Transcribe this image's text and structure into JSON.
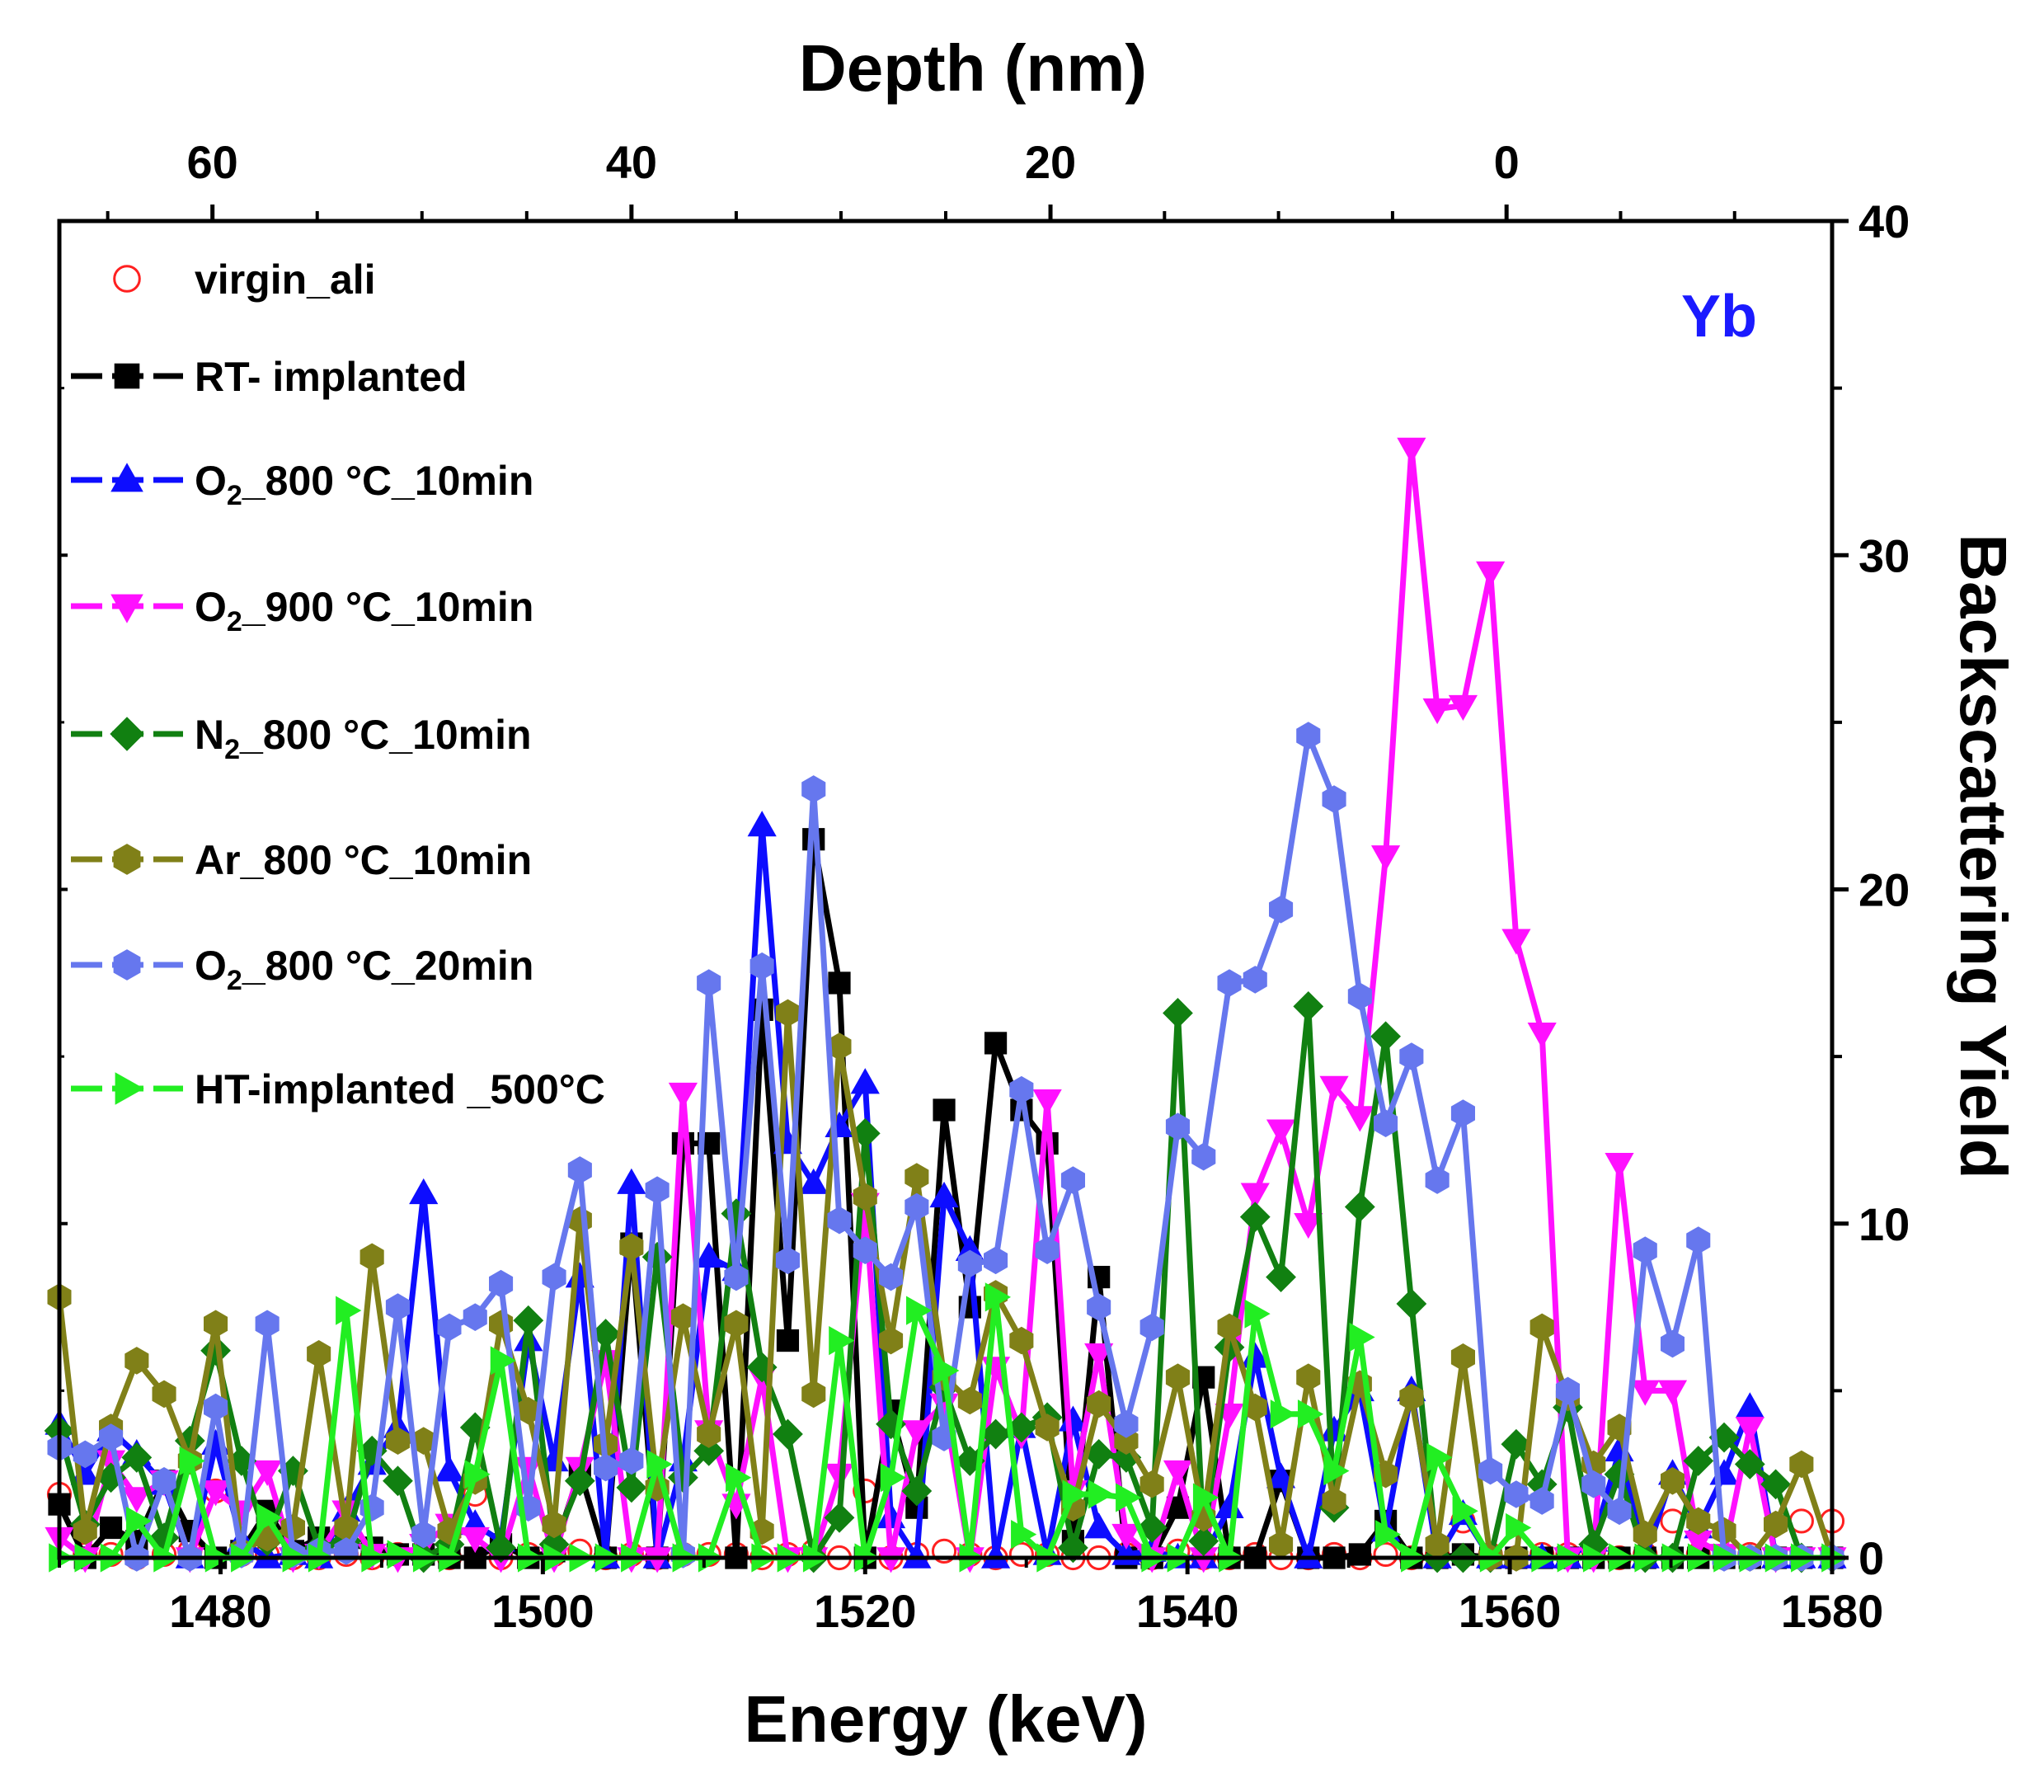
{
  "chart_data": {
    "type": "line",
    "title": "",
    "xlabel": "Energy (keV)",
    "x2label": "Depth (nm)",
    "ylabel": "Backscattering Yield",
    "xlim": [
      1470,
      1580
    ],
    "ylim": [
      0,
      40
    ],
    "x_ticks": [
      "1480",
      "1500",
      "1520",
      "1540",
      "1560",
      "1580"
    ],
    "y_ticks": [
      "0",
      "10",
      "20",
      "30",
      "40"
    ],
    "depth_ticks": [
      {
        "depth": 60,
        "label": "60",
        "energy": 1479.5
      },
      {
        "depth": 40,
        "label": "40",
        "energy": 1505.5
      },
      {
        "depth": 20,
        "label": "20",
        "energy": 1531.5
      },
      {
        "depth": 0,
        "label": "0",
        "energy": 1559.8
      }
    ],
    "annotation": {
      "text": "Yb",
      "color": "#1a1aff"
    },
    "grid": false,
    "legend_position": "top-left",
    "x": [
      1470,
      1471.6,
      1473.2,
      1474.8,
      1476.5,
      1478.1,
      1479.7,
      1481.3,
      1482.9,
      1484.5,
      1486.1,
      1487.8,
      1489.4,
      1491,
      1492.6,
      1494.2,
      1495.8,
      1497.4,
      1499.1,
      1500.7,
      1502.3,
      1503.9,
      1505.5,
      1507.1,
      1508.7,
      1510.3,
      1512,
      1513.6,
      1515.2,
      1516.8,
      1518.4,
      1520,
      1521.6,
      1523.2,
      1524.9,
      1526.5,
      1528.1,
      1529.7,
      1531.3,
      1532.9,
      1534.5,
      1536.2,
      1537.8,
      1539.4,
      1541,
      1542.6,
      1544.2,
      1545.8,
      1547.5,
      1549.1,
      1550.7,
      1552.3,
      1553.9,
      1555.5,
      1557.1,
      1558.8,
      1560.4,
      1562,
      1563.6,
      1565.2,
      1566.8,
      1568.4,
      1570.1,
      1571.7,
      1573.3,
      1574.9,
      1576.5,
      1578.1,
      1580
    ],
    "series": [
      {
        "name": "virgin_ali",
        "color": "#ff2020",
        "marker": "open-circle",
        "line": false,
        "values": [
          1.9,
          0.1,
          0.1,
          0,
          0.1,
          0.2,
          2,
          0.1,
          0.1,
          0,
          0,
          0.1,
          0,
          0.1,
          0.1,
          0,
          1.9,
          0,
          0.1,
          0.1,
          0.2,
          0,
          0.1,
          0,
          0.1,
          0.1,
          0.1,
          0,
          0.1,
          0.2,
          0,
          2,
          0,
          0.1,
          0.2,
          0.1,
          0,
          0.1,
          0.1,
          0,
          0,
          0.1,
          0,
          0.2,
          0,
          0,
          0.1,
          0,
          0,
          0.1,
          0,
          0.1,
          0,
          0.1,
          1.1,
          0.1,
          0,
          0.1,
          0.1,
          0.2,
          0,
          0.1,
          1.1,
          0.1,
          0,
          0.1,
          0,
          1.1,
          1.1
        ]
      },
      {
        "name": "RT- implanted",
        "color": "#000000",
        "marker": "square",
        "line": true,
        "values": [
          1.6,
          0,
          0.9,
          0.5,
          2.3,
          0.8,
          0,
          0.2,
          1.4,
          0.2,
          0.6,
          0.4,
          0.3,
          0.1,
          0.1,
          0,
          0,
          0.4,
          0,
          0.2,
          2.6,
          0,
          9.4,
          0,
          12.4,
          12.4,
          0,
          16.4,
          6.5,
          21.5,
          17.2,
          0,
          4.4,
          1.5,
          13.4,
          7.5,
          15.4,
          13.4,
          12.4,
          0.5,
          8.4,
          0,
          0,
          1.5,
          5.4,
          0,
          0,
          2.3,
          0,
          0,
          0.1,
          1.1,
          0,
          0,
          0.1,
          0,
          0,
          0,
          0,
          0,
          0,
          0,
          0,
          0,
          0,
          0,
          0,
          0,
          0
        ]
      },
      {
        "name": "O₂_800 °C_10min",
        "color": "#0d0dff",
        "marker": "triangle-up",
        "line": true,
        "values": [
          4,
          2.5,
          3.8,
          3.1,
          2.2,
          0,
          3.4,
          0.5,
          0,
          0.1,
          0,
          1.4,
          2.8,
          3.9,
          10.9,
          2.6,
          1,
          0.5,
          6.5,
          2.9,
          8.4,
          0,
          11.2,
          0,
          2.9,
          9,
          8.6,
          21.9,
          12.4,
          11.2,
          12.9,
          14.2,
          1.2,
          0,
          10.8,
          9.2,
          0,
          3.9,
          0.1,
          4.1,
          0.9,
          0.1,
          0.2,
          0,
          0,
          1.5,
          6,
          2.4,
          0,
          3.8,
          5,
          0.8,
          5,
          0,
          1.3,
          0,
          0,
          0,
          0,
          0.5,
          3.2,
          0,
          2.5,
          0.9,
          2.5,
          4.5,
          0,
          0,
          0
        ]
      },
      {
        "name": "O₂_900 °C_10min",
        "color": "#ff10ff",
        "marker": "triangle-down",
        "line": true,
        "values": [
          0.6,
          0,
          2.9,
          1.8,
          2.3,
          0,
          2,
          1.4,
          2.6,
          0,
          0.1,
          1.4,
          0.1,
          0,
          0.4,
          1,
          0.6,
          0,
          2.7,
          0,
          2.7,
          5.9,
          0,
          0,
          13.9,
          3.8,
          1.6,
          5.4,
          0,
          0,
          2.5,
          10.6,
          0,
          3.8,
          4.6,
          0,
          5.7,
          3.7,
          13.7,
          2,
          6.1,
          0.7,
          0,
          2.6,
          0,
          4.3,
          10.9,
          12.8,
          10,
          14.1,
          13.2,
          21,
          33.2,
          25.4,
          25.5,
          29.5,
          18.5,
          15.7,
          0,
          0,
          11.8,
          5,
          5,
          0.5,
          0.1,
          3.9,
          0,
          0,
          0
        ]
      },
      {
        "name": "N₂_800 °C_10min",
        "color": "#118011",
        "marker": "diamond",
        "line": true,
        "values": [
          3.8,
          1,
          2.4,
          3,
          0.6,
          3.5,
          6.2,
          2.9,
          0.5,
          2.6,
          0.3,
          0.5,
          3.2,
          2.3,
          0,
          0.4,
          3.9,
          0.3,
          7.1,
          0.4,
          2.3,
          6.7,
          2.1,
          9,
          2.4,
          3.2,
          10.3,
          5.7,
          3.7,
          0,
          1.2,
          12.7,
          4,
          2,
          5.1,
          2.9,
          3.7,
          3.9,
          4.2,
          0.3,
          3.1,
          3,
          0.9,
          16.3,
          0.5,
          6.3,
          10.2,
          8.4,
          16.5,
          1.5,
          10.5,
          15.6,
          7.6,
          0,
          0,
          0,
          3.4,
          2.2,
          4.5,
          0.4,
          2.5,
          0,
          0,
          2.9,
          3.6,
          2.8,
          2.2,
          0,
          0
        ]
      },
      {
        "name": "Ar_800 °C_10min",
        "color": "#808018",
        "marker": "hexagon",
        "line": true,
        "values": [
          7.8,
          0.8,
          3.9,
          5.9,
          4.9,
          2.9,
          7,
          0.2,
          0.6,
          0.9,
          6.1,
          0.9,
          9,
          3.5,
          3.5,
          0.8,
          2.3,
          7,
          4.4,
          1,
          10.1,
          3.4,
          9.3,
          2.1,
          7.2,
          3.7,
          7,
          0.8,
          16.3,
          4.9,
          15.3,
          10.8,
          6.5,
          11.4,
          5.4,
          4.7,
          7.9,
          6.5,
          3.9,
          1.5,
          4.6,
          3.5,
          2.2,
          5.4,
          1.2,
          6.9,
          4.5,
          0.4,
          5.4,
          1.7,
          5.2,
          2.5,
          4.8,
          0.4,
          6,
          0,
          0,
          6.9,
          4.8,
          2.8,
          3.9,
          0.7,
          2.3,
          1.1,
          0.8,
          0,
          1,
          2.8,
          0
        ]
      },
      {
        "name": "O₂_800 °C_20min",
        "color": "#6677ee",
        "marker": "hexagon",
        "line": true,
        "values": [
          3.3,
          3.1,
          3.6,
          0,
          2.3,
          0,
          4.5,
          0.1,
          7,
          0.1,
          0.2,
          0.2,
          1.5,
          7.5,
          0.7,
          6.9,
          7.2,
          8.2,
          1.5,
          8.4,
          11.6,
          2.7,
          2.9,
          11,
          0.1,
          17.2,
          8.4,
          17.7,
          8.9,
          23,
          10.1,
          9.2,
          8.4,
          10.5,
          3.6,
          8.8,
          8.9,
          14,
          9.2,
          11.3,
          7.5,
          4,
          6.9,
          12.9,
          12,
          17.2,
          17.3,
          19.4,
          24.6,
          22.7,
          16.8,
          13,
          15,
          11.3,
          13.3,
          2.6,
          1.9,
          1.7,
          5,
          2.2,
          1.4,
          9.2,
          6.4,
          9.5,
          0,
          0,
          0,
          0,
          0
        ]
      },
      {
        "name": "HT-implanted _500°C",
        "color": "#22ee22",
        "marker": "triangle-right",
        "line": true,
        "values": [
          0,
          0,
          0,
          1.1,
          0,
          2.9,
          0,
          0,
          1.2,
          0,
          0,
          7.4,
          0,
          0.1,
          0,
          0,
          2.5,
          5.9,
          0,
          0,
          0,
          0,
          0,
          2.8,
          0,
          0,
          2.4,
          0,
          0,
          0,
          6.5,
          0,
          2.4,
          7.4,
          5.6,
          0,
          7.8,
          0.7,
          0,
          1.9,
          1.9,
          1.8,
          0,
          0,
          1.8,
          0,
          7.3,
          4.3,
          4.3,
          2.6,
          6.6,
          0.7,
          0,
          3,
          1.4,
          0,
          0.9,
          0,
          0,
          0,
          0,
          0,
          0,
          0,
          0,
          0,
          0,
          0,
          0
        ]
      }
    ]
  }
}
